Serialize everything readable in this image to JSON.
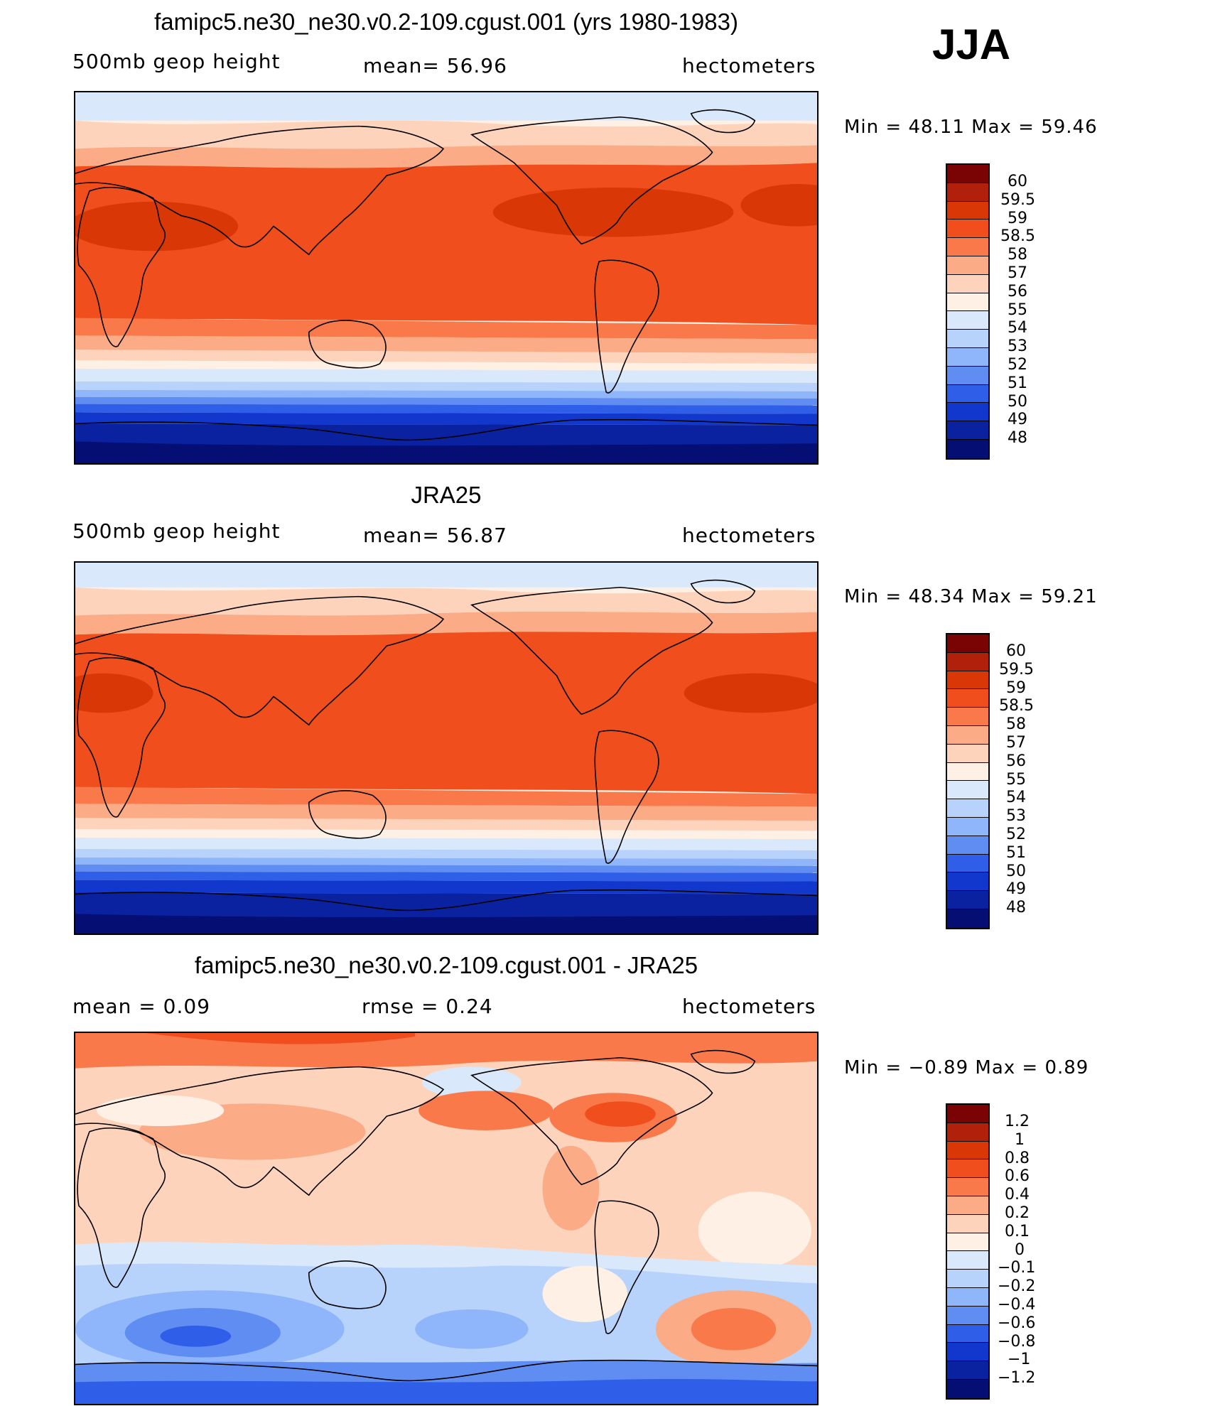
{
  "season": "JJA",
  "panels": [
    {
      "title": "famipc5.ne30_ne30.v0.2-109.cgust.001 (yrs 1980-1983)",
      "left_label": "500mb geop height",
      "mid_label": "mean=   56.96",
      "units": "hectometers",
      "min_max": "Min  =    48.11  Max  =    59.46",
      "colorbar_labels": [
        "60",
        "59.5",
        "59",
        "58.5",
        "58",
        "57",
        "56",
        "55",
        "54",
        "53",
        "52",
        "51",
        "50",
        "49",
        "48"
      ]
    },
    {
      "title": "JRA25",
      "left_label": "500mb geop height",
      "mid_label": "mean=   56.87",
      "units": "hectometers",
      "min_max": "Min  =    48.34  Max  =    59.21",
      "colorbar_labels": [
        "60",
        "59.5",
        "59",
        "58.5",
        "58",
        "57",
        "56",
        "55",
        "54",
        "53",
        "52",
        "51",
        "50",
        "49",
        "48"
      ]
    },
    {
      "title": "famipc5.ne30_ne30.v0.2-109.cgust.001 - JRA25",
      "left_label": "mean  =      0.09",
      "mid_label": "rmse  =      0.24",
      "units": "hectometers",
      "min_max": "Min  =    −0.89  Max  =       0.89",
      "colorbar_labels": [
        "1.2",
        "1",
        "0.8",
        "0.6",
        "0.4",
        "0.2",
        "0.1",
        "0",
        "−0.1",
        "−0.2",
        "−0.4",
        "−0.6",
        "−0.8",
        "−1",
        "−1.2"
      ]
    }
  ],
  "colors": {
    "palette": [
      "#7a0403",
      "#b0200a",
      "#d93806",
      "#f04e1c",
      "#f9794a",
      "#fbac87",
      "#fdd3bc",
      "#fef0e4",
      "#d9e9fb",
      "#b8d3fb",
      "#8fb5fa",
      "#5f8df2",
      "#2f5fe8",
      "#1237cc",
      "#0b22a0",
      "#050e72"
    ]
  }
}
